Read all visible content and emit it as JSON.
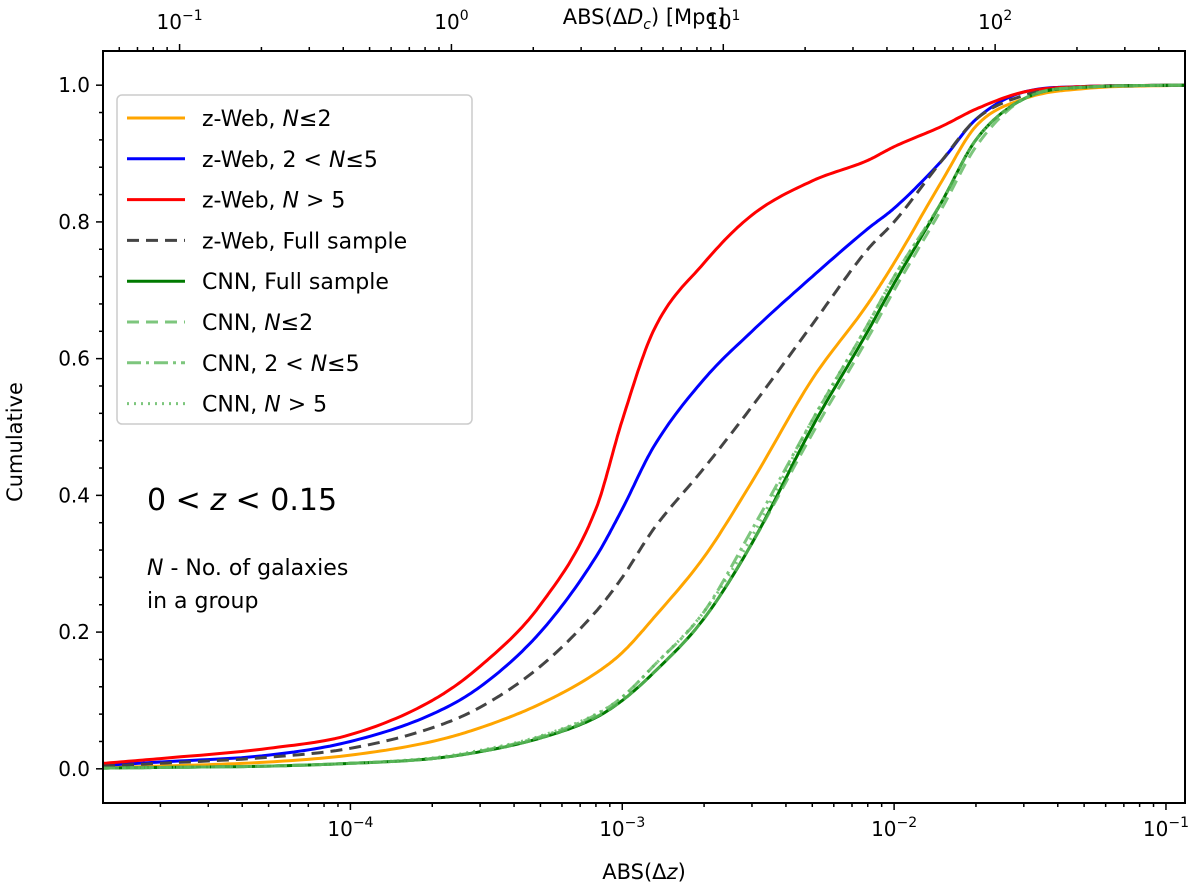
{
  "chart_data": {
    "type": "line",
    "xscale": "log",
    "xlim": [
      1.23e-05,
      0.1175
    ],
    "ylim": [
      -0.05,
      1.05
    ],
    "xlabel": "ABS(Δz)",
    "xlabel_parts": [
      "ABS(Δ",
      "z",
      ")"
    ],
    "ylabel": "Cumulative",
    "top_axis_label": "ABS(ΔD_c) [Mpc]",
    "top_axis_label_parts": [
      "ABS(Δ",
      "D",
      "c",
      ") [Mpc]"
    ],
    "top_axis_factor_mpc_per_dz": 4250,
    "x_ticks": [
      {
        "value": 0.0001,
        "base": "10",
        "exp": "−4"
      },
      {
        "value": 0.001,
        "base": "10",
        "exp": "−3"
      },
      {
        "value": 0.01,
        "base": "10",
        "exp": "−2"
      },
      {
        "value": 0.1,
        "base": "10",
        "exp": "−1"
      }
    ],
    "top_ticks": [
      {
        "value": 0.1,
        "base": "10",
        "exp": "−1"
      },
      {
        "value": 1,
        "base": "10",
        "exp": "0"
      },
      {
        "value": 10,
        "base": "10",
        "exp": "1"
      },
      {
        "value": 100,
        "base": "10",
        "exp": "2"
      }
    ],
    "y_ticks": [
      "0.0",
      "0.2",
      "0.4",
      "0.6",
      "0.8",
      "1.0"
    ],
    "x": [
      1.23e-05,
      2e-05,
      5e-05,
      0.0001,
      0.0002,
      0.0003,
      0.0005,
      0.0008,
      0.001,
      0.0013,
      0.002,
      0.003,
      0.005,
      0.008,
      0.01,
      0.015,
      0.02,
      0.03,
      0.05,
      0.1175
    ],
    "series": [
      {
        "name": "z-Web, N≤2",
        "label_parts": [
          [
            "z-Web, ",
            "n"
          ],
          [
            "N",
            "i"
          ],
          [
            "≤2",
            "n"
          ]
        ],
        "color": "#FFA500",
        "dash": "",
        "opacity": 1,
        "width": 3,
        "values": [
          0.002,
          0.004,
          0.01,
          0.02,
          0.04,
          0.06,
          0.095,
          0.14,
          0.17,
          0.22,
          0.31,
          0.42,
          0.57,
          0.68,
          0.74,
          0.86,
          0.94,
          0.98,
          0.995,
          1.0
        ]
      },
      {
        "name": "z-Web, 2 < N≤5",
        "label_parts": [
          [
            "z-Web, 2 < ",
            "n"
          ],
          [
            "N",
            "i"
          ],
          [
            "≤5",
            "n"
          ]
        ],
        "color": "#0000FF",
        "dash": "",
        "opacity": 1,
        "width": 3,
        "values": [
          0.005,
          0.01,
          0.02,
          0.04,
          0.08,
          0.12,
          0.2,
          0.31,
          0.38,
          0.47,
          0.57,
          0.64,
          0.72,
          0.79,
          0.82,
          0.89,
          0.95,
          0.99,
          0.998,
          1.0
        ]
      },
      {
        "name": "z-Web, N > 5",
        "label_parts": [
          [
            "z-Web, ",
            "n"
          ],
          [
            "N",
            "i"
          ],
          [
            " > 5",
            "n"
          ]
        ],
        "color": "#FF0000",
        "dash": "",
        "opacity": 1,
        "width": 3,
        "values": [
          0.008,
          0.015,
          0.03,
          0.05,
          0.1,
          0.15,
          0.24,
          0.38,
          0.51,
          0.64,
          0.74,
          0.81,
          0.86,
          0.89,
          0.91,
          0.94,
          0.965,
          0.99,
          0.998,
          1.0
        ]
      },
      {
        "name": "z-Web, Full sample",
        "label_parts": [
          [
            "z-Web, Full sample",
            "n"
          ]
        ],
        "color": "#444444",
        "dash": "12,7",
        "opacity": 1,
        "width": 3,
        "values": [
          0.004,
          0.008,
          0.017,
          0.03,
          0.06,
          0.09,
          0.15,
          0.23,
          0.28,
          0.35,
          0.44,
          0.53,
          0.65,
          0.76,
          0.8,
          0.89,
          0.95,
          0.985,
          0.997,
          1.0
        ]
      },
      {
        "name": "CNN, Full sample",
        "label_parts": [
          [
            "CNN, Full sample",
            "n"
          ]
        ],
        "color": "#007A00",
        "dash": "",
        "opacity": 1,
        "width": 3,
        "values": [
          0.001,
          0.002,
          0.004,
          0.008,
          0.015,
          0.025,
          0.045,
          0.075,
          0.1,
          0.14,
          0.22,
          0.33,
          0.5,
          0.64,
          0.71,
          0.83,
          0.92,
          0.98,
          0.997,
          1.0
        ]
      },
      {
        "name": "CNN, N≤2",
        "label_parts": [
          [
            "CNN, ",
            "n"
          ],
          [
            "N",
            "i"
          ],
          [
            "≤2",
            "n"
          ]
        ],
        "color": "#5CB85C",
        "dash": "12,7",
        "opacity": 0.8,
        "width": 3,
        "values": [
          0.001,
          0.002,
          0.004,
          0.008,
          0.015,
          0.025,
          0.045,
          0.076,
          0.1,
          0.14,
          0.22,
          0.33,
          0.49,
          0.63,
          0.7,
          0.82,
          0.91,
          0.98,
          0.997,
          1.0
        ]
      },
      {
        "name": "CNN, 2 < N≤5",
        "label_parts": [
          [
            "CNN, 2 < ",
            "n"
          ],
          [
            "N",
            "i"
          ],
          [
            "≤5",
            "n"
          ]
        ],
        "color": "#5CB85C",
        "dash": "14,5,3,5",
        "opacity": 0.8,
        "width": 3,
        "values": [
          0.001,
          0.002,
          0.004,
          0.008,
          0.015,
          0.026,
          0.047,
          0.079,
          0.105,
          0.15,
          0.23,
          0.35,
          0.51,
          0.65,
          0.72,
          0.83,
          0.92,
          0.98,
          0.997,
          1.0
        ]
      },
      {
        "name": "CNN, N > 5",
        "label_parts": [
          [
            "CNN, ",
            "n"
          ],
          [
            "N",
            "i"
          ],
          [
            " > 5",
            "n"
          ]
        ],
        "color": "#5CB85C",
        "dash": "2,5",
        "opacity": 0.8,
        "width": 3,
        "values": [
          0.001,
          0.002,
          0.004,
          0.008,
          0.016,
          0.027,
          0.048,
          0.08,
          0.105,
          0.15,
          0.23,
          0.34,
          0.51,
          0.65,
          0.72,
          0.83,
          0.92,
          0.98,
          0.997,
          1.0
        ]
      }
    ],
    "annotations": {
      "range_parts": [
        [
          "0 < ",
          "n"
        ],
        [
          "z",
          "i"
        ],
        [
          " < 0.15",
          "n"
        ]
      ],
      "note_line1_parts": [
        [
          "N",
          "i"
        ],
        [
          " - No. of galaxies",
          "n"
        ]
      ],
      "note_line2": "in a group"
    },
    "legend_position": "upper-left",
    "grid": false
  }
}
